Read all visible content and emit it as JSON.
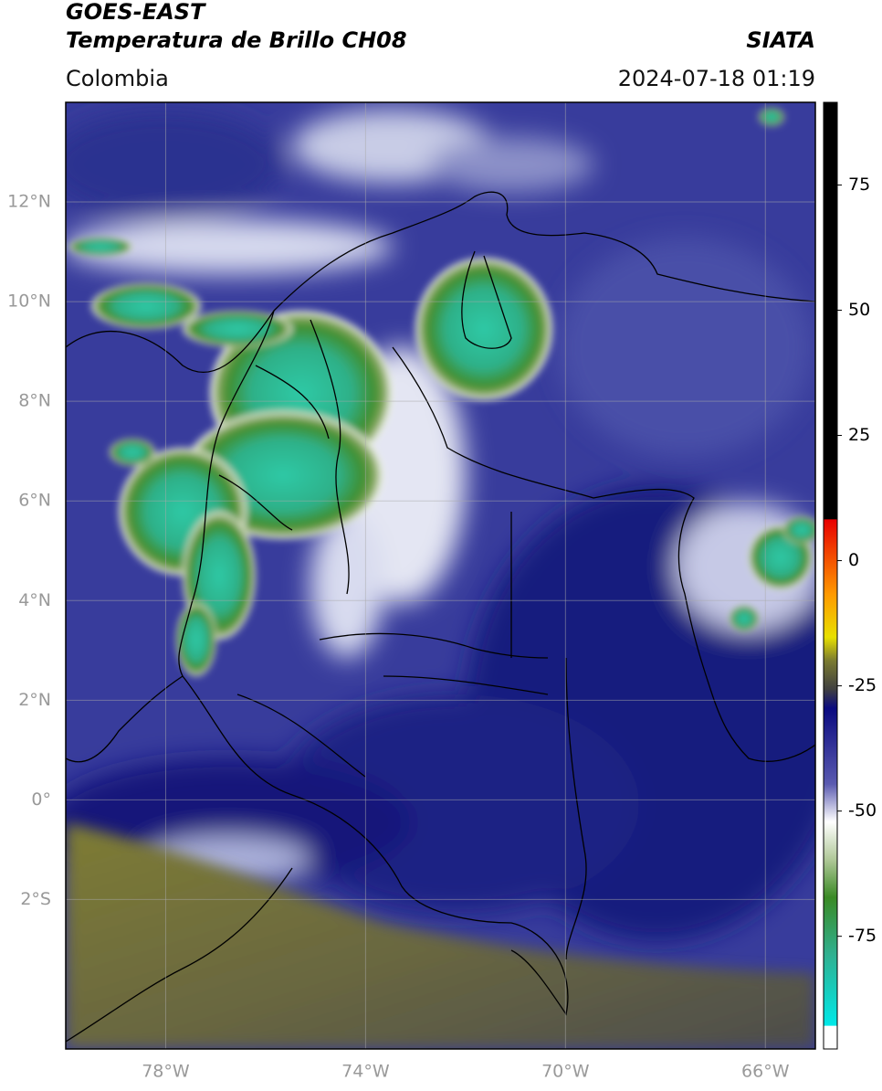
{
  "header": {
    "title": "GOES-EAST",
    "subtitle": "Temperatura de Brillo CH08",
    "region": "Colombia",
    "source": "SIATA",
    "timestamp": "2024-07-18 01:19"
  },
  "map": {
    "lonlim": [
      -80,
      -65
    ],
    "latlim": [
      -5,
      14
    ],
    "lat_ticks": [
      {
        "value": 12,
        "label": "12°N"
      },
      {
        "value": 10,
        "label": "10°N"
      },
      {
        "value": 8,
        "label": "8°N"
      },
      {
        "value": 6,
        "label": "6°N"
      },
      {
        "value": 4,
        "label": "4°N"
      },
      {
        "value": 2,
        "label": "2°N"
      },
      {
        "value": 0,
        "label": "0°"
      },
      {
        "value": -2,
        "label": "2°S"
      }
    ],
    "lon_ticks": [
      {
        "value": -78,
        "label": "78°W"
      },
      {
        "value": -74,
        "label": "74°W"
      },
      {
        "value": -70,
        "label": "70°W"
      },
      {
        "value": -66,
        "label": "66°W"
      }
    ]
  },
  "colorbar": {
    "lim": [
      -97.5,
      91.5
    ],
    "ticks": [
      75,
      50,
      25,
      0,
      -25,
      -50,
      -75
    ]
  }
}
